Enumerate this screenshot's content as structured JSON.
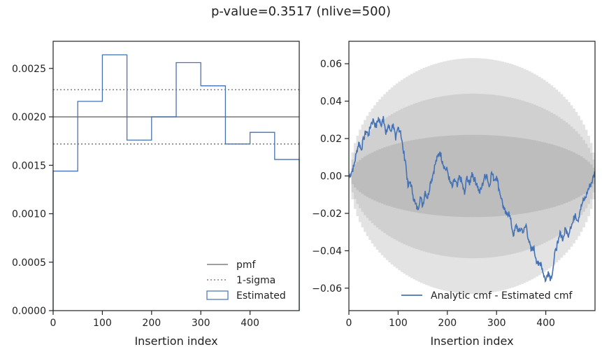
{
  "suptitle": "p-value=0.3517 (nlive=500)",
  "colors": {
    "estimated": "#4472b4",
    "pmf": "#808080",
    "band_outer": "#e3e3e3",
    "band_mid": "#d0d0d0",
    "band_inner": "#bdbdbd"
  },
  "chart_data": [
    {
      "type": "histogram",
      "title": "",
      "xlabel": "Insertion index",
      "ylabel": "",
      "xlim": [
        0,
        500
      ],
      "ylim": [
        0,
        0.00278
      ],
      "xticks": [
        0,
        100,
        200,
        300,
        400
      ],
      "xtick_labels": [
        "0",
        "100",
        "200",
        "300",
        "400"
      ],
      "yticks": [
        0,
        0.0005,
        0.001,
        0.0015,
        0.002,
        0.0025
      ],
      "ytick_labels": [
        "0.0000",
        "0.0005",
        "0.0010",
        "0.0015",
        "0.0020",
        "0.0025"
      ],
      "bin_edges": [
        0,
        50,
        100,
        150,
        200,
        250,
        300,
        350,
        400,
        450,
        500
      ],
      "values": [
        0.00144,
        0.00216,
        0.00264,
        0.00176,
        0.002,
        0.00256,
        0.00232,
        0.00172,
        0.00184,
        0.00156
      ],
      "pmf": 0.002,
      "one_sigma": [
        0.00172,
        0.00228
      ],
      "legend": [
        "pmf",
        "1-sigma",
        "Estimated"
      ],
      "legend_loc": "lower-right"
    },
    {
      "type": "line",
      "title": "",
      "xlabel": "Insertion index",
      "ylabel": "",
      "xlim": [
        0,
        500
      ],
      "ylim": [
        -0.072,
        0.072
      ],
      "xticks": [
        0,
        100,
        200,
        300,
        400
      ],
      "xtick_labels": [
        "0",
        "100",
        "200",
        "300",
        "400"
      ],
      "yticks": [
        -0.06,
        -0.04,
        -0.02,
        0.0,
        0.02,
        0.04,
        0.06
      ],
      "ytick_labels": [
        "−0.06",
        "−0.04",
        "−0.02",
        "0.00",
        "0.02",
        "0.04",
        "0.06"
      ],
      "bands_halfwidth_max": [
        0.063,
        0.044,
        0.022
      ],
      "series": [
        {
          "name": "Analytic cmf - Estimated cmf",
          "x": [
            0,
            5,
            10,
            15,
            20,
            25,
            30,
            35,
            40,
            45,
            50,
            55,
            60,
            65,
            70,
            75,
            80,
            85,
            90,
            95,
            100,
            105,
            110,
            115,
            120,
            125,
            130,
            135,
            140,
            145,
            150,
            155,
            160,
            165,
            170,
            175,
            180,
            185,
            190,
            195,
            200,
            205,
            210,
            215,
            220,
            225,
            230,
            235,
            240,
            245,
            250,
            255,
            260,
            265,
            270,
            275,
            280,
            285,
            290,
            295,
            300,
            305,
            310,
            315,
            320,
            325,
            330,
            335,
            340,
            345,
            350,
            355,
            360,
            365,
            370,
            375,
            380,
            385,
            390,
            395,
            400,
            405,
            410,
            415,
            420,
            425,
            430,
            435,
            440,
            445,
            450,
            455,
            460,
            465,
            470,
            475,
            480,
            485,
            490,
            495,
            500
          ],
          "y": [
            -0.001,
            0.002,
            0.005,
            0.012,
            0.018,
            0.014,
            0.02,
            0.024,
            0.022,
            0.028,
            0.03,
            0.026,
            0.031,
            0.027,
            0.032,
            0.022,
            0.027,
            0.024,
            0.028,
            0.019,
            0.026,
            0.024,
            0.014,
            0.008,
            -0.006,
            -0.003,
            -0.01,
            -0.015,
            -0.018,
            -0.011,
            -0.016,
            -0.008,
            -0.012,
            -0.004,
            0.0,
            0.006,
            0.01,
            0.013,
            0.008,
            0.004,
            0.003,
            -0.003,
            -0.006,
            -0.002,
            -0.006,
            0.0,
            -0.004,
            -0.01,
            0.0,
            -0.005,
            0.002,
            -0.002,
            -0.004,
            -0.009,
            -0.006,
            -0.001,
            0.001,
            -0.006,
            0.002,
            -0.002,
            0.0,
            -0.007,
            -0.012,
            -0.018,
            -0.021,
            -0.019,
            -0.026,
            -0.032,
            -0.026,
            -0.03,
            -0.028,
            -0.03,
            -0.026,
            -0.034,
            -0.04,
            -0.038,
            -0.044,
            -0.048,
            -0.046,
            -0.052,
            -0.056,
            -0.051,
            -0.055,
            -0.049,
            -0.039,
            -0.036,
            -0.03,
            -0.034,
            -0.028,
            -0.032,
            -0.027,
            -0.025,
            -0.02,
            -0.024,
            -0.018,
            -0.014,
            -0.012,
            -0.008,
            -0.005,
            -0.002,
            0.002
          ]
        }
      ],
      "legend": [
        "Analytic cmf - Estimated cmf"
      ],
      "legend_loc": "lower-right"
    }
  ]
}
